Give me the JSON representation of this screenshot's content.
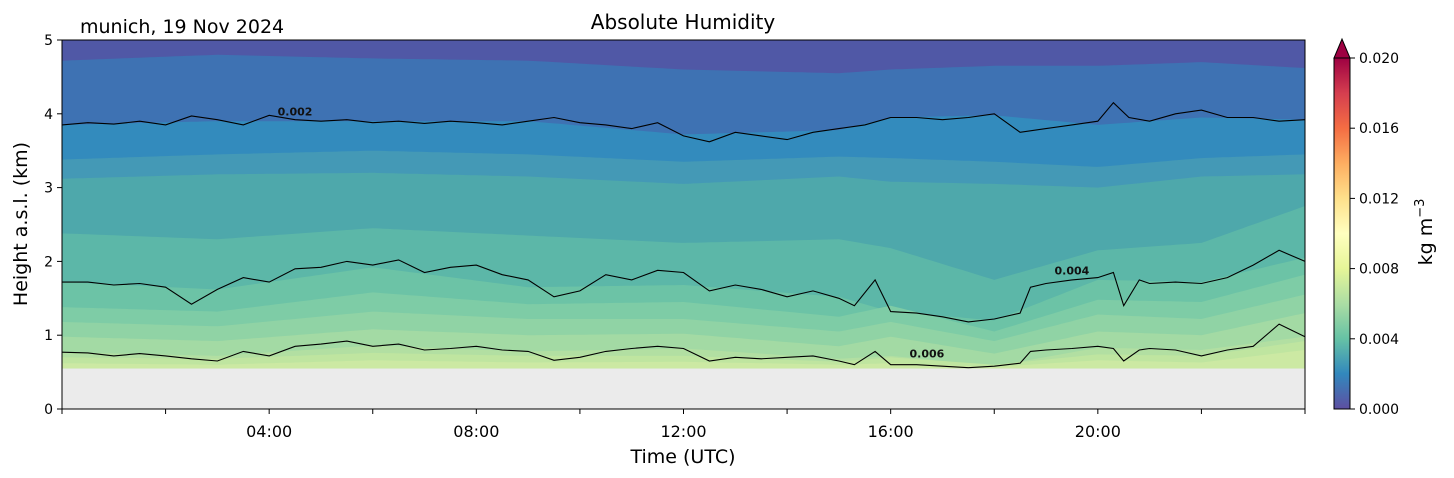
{
  "chart_data": {
    "type": "heatmap",
    "title": "Absolute Humidity",
    "station_label": "munich, 19 Nov 2024",
    "xlabel": "Time (UTC)",
    "ylabel": "Height a.s.l. (km)",
    "xlim_hours": [
      0,
      24
    ],
    "ylim": [
      0,
      5
    ],
    "xticks": [
      {
        "hour": 4,
        "label": "04:00"
      },
      {
        "hour": 8,
        "label": "08:00"
      },
      {
        "hour": 12,
        "label": "12:00"
      },
      {
        "hour": 16,
        "label": "16:00"
      },
      {
        "hour": 20,
        "label": "20:00"
      }
    ],
    "yticks": [
      0,
      1,
      2,
      3,
      4,
      5
    ],
    "data_bottom_km": 0.55,
    "data_top_km": 5,
    "missing_color": "#ebebeb",
    "colorbar": {
      "label": "kg m",
      "label_exponent": "−3",
      "min": 0.0,
      "max": 0.02,
      "extend": "max",
      "ticks": [
        "0.000",
        "0.004",
        "0.008",
        "0.012",
        "0.016",
        "0.020"
      ],
      "tick_values": [
        0.0,
        0.004,
        0.008,
        0.012,
        0.016,
        0.02
      ],
      "colormap": "Spectral_r",
      "colormap_stops": [
        "#5e4fa2",
        "#3288bd",
        "#66c2a5",
        "#abdda4",
        "#e6f598",
        "#ffffbf",
        "#fee08b",
        "#fdae61",
        "#f46d43",
        "#d53e4f",
        "#9e0142"
      ]
    },
    "contour_lines": [
      {
        "level_label": "0.002",
        "label_pos": {
          "hour": 4.5,
          "km": 3.98
        },
        "x_hours": [
          0,
          0.5,
          1,
          1.5,
          2,
          2.5,
          3,
          3.5,
          4,
          4.5,
          5,
          5.5,
          6,
          6.5,
          7,
          7.5,
          8,
          8.5,
          9,
          9.5,
          10,
          10.5,
          11,
          11.5,
          12,
          12.5,
          13,
          13.5,
          14,
          14.5,
          15,
          15.5,
          16,
          16.5,
          17,
          17.5,
          18,
          18.5,
          19,
          19.5,
          20,
          20.3,
          20.6,
          21,
          21.5,
          22,
          22.5,
          23,
          23.5,
          24
        ],
        "heights_km": [
          3.85,
          3.88,
          3.86,
          3.9,
          3.85,
          3.97,
          3.92,
          3.85,
          3.98,
          3.92,
          3.9,
          3.92,
          3.88,
          3.9,
          3.87,
          3.9,
          3.88,
          3.85,
          3.9,
          3.95,
          3.88,
          3.85,
          3.8,
          3.88,
          3.7,
          3.62,
          3.75,
          3.7,
          3.65,
          3.75,
          3.8,
          3.85,
          3.95,
          3.95,
          3.92,
          3.95,
          4.0,
          3.75,
          3.8,
          3.85,
          3.9,
          4.15,
          3.95,
          3.9,
          4.0,
          4.05,
          3.95,
          3.95,
          3.9,
          3.92
        ]
      },
      {
        "level_label": "0.004",
        "label_pos": {
          "hour": 19.5,
          "km": 1.82
        },
        "x_hours": [
          0,
          0.5,
          1,
          1.5,
          2,
          2.5,
          3,
          3.5,
          4,
          4.5,
          5,
          5.5,
          6,
          6.5,
          7,
          7.5,
          8,
          8.5,
          9,
          9.5,
          10,
          10.5,
          11,
          11.5,
          12,
          12.5,
          13,
          13.5,
          14,
          14.5,
          15,
          15.3,
          15.7,
          16,
          16.5,
          17,
          17.5,
          18,
          18.5,
          18.7,
          19,
          19.5,
          20,
          20.3,
          20.5,
          20.8,
          21,
          21.5,
          22,
          22.5,
          23,
          23.5,
          24
        ],
        "heights_km": [
          1.72,
          1.72,
          1.68,
          1.7,
          1.65,
          1.42,
          1.62,
          1.78,
          1.72,
          1.9,
          1.92,
          2.0,
          1.95,
          2.02,
          1.85,
          1.92,
          1.95,
          1.82,
          1.75,
          1.52,
          1.6,
          1.82,
          1.75,
          1.88,
          1.85,
          1.6,
          1.68,
          1.62,
          1.52,
          1.6,
          1.5,
          1.4,
          1.75,
          1.32,
          1.3,
          1.25,
          1.18,
          1.22,
          1.3,
          1.65,
          1.7,
          1.75,
          1.78,
          1.85,
          1.4,
          1.75,
          1.7,
          1.72,
          1.7,
          1.78,
          1.95,
          2.15,
          2.0
        ]
      },
      {
        "level_label": "0.006",
        "label_pos": {
          "hour": 16.7,
          "km": 0.7
        },
        "x_hours": [
          0,
          0.5,
          1,
          1.5,
          2,
          2.5,
          3,
          3.5,
          4,
          4.5,
          5,
          5.5,
          6,
          6.5,
          7,
          7.5,
          8,
          8.5,
          9,
          9.5,
          10,
          10.5,
          11,
          11.5,
          12,
          12.5,
          13,
          13.5,
          14,
          14.5,
          15,
          15.3,
          15.7,
          16,
          16.5,
          17,
          17.5,
          18,
          18.5,
          18.7,
          19,
          19.5,
          20,
          20.3,
          20.5,
          20.8,
          21,
          21.5,
          22,
          22.5,
          23,
          23.5,
          24
        ],
        "heights_km": [
          0.77,
          0.76,
          0.72,
          0.75,
          0.72,
          0.68,
          0.65,
          0.78,
          0.72,
          0.85,
          0.88,
          0.92,
          0.85,
          0.88,
          0.8,
          0.82,
          0.85,
          0.8,
          0.78,
          0.66,
          0.7,
          0.78,
          0.82,
          0.85,
          0.82,
          0.65,
          0.7,
          0.68,
          0.7,
          0.72,
          0.65,
          0.6,
          0.78,
          0.6,
          0.6,
          0.58,
          0.56,
          0.58,
          0.62,
          0.78,
          0.8,
          0.82,
          0.85,
          0.82,
          0.65,
          0.8,
          0.82,
          0.8,
          0.72,
          0.8,
          0.85,
          1.15,
          0.98
        ]
      }
    ],
    "filled_band_upper_bounds": [
      {
        "value": 0.0075,
        "color": "#cce9a3",
        "x_hours": [
          0,
          3,
          6,
          9,
          12,
          15,
          16,
          18,
          20,
          22,
          24
        ],
        "heights_km": [
          0.62,
          0.6,
          0.66,
          0.63,
          0.64,
          0.6,
          0.62,
          0.57,
          0.66,
          0.63,
          0.8
        ]
      },
      {
        "value": 0.007,
        "color": "#bfe5a0",
        "x_hours": [
          0,
          3,
          6,
          9,
          12,
          15,
          16,
          18,
          20,
          22,
          24
        ],
        "heights_km": [
          0.7,
          0.68,
          0.76,
          0.72,
          0.72,
          0.64,
          0.7,
          0.6,
          0.74,
          0.72,
          0.92
        ]
      },
      {
        "value": 0.0065,
        "color": "#b2dfa2",
        "x_hours": [
          0,
          3,
          6,
          9,
          12,
          15,
          16,
          18,
          20,
          22,
          24
        ],
        "heights_km": [
          0.77,
          0.72,
          0.86,
          0.78,
          0.82,
          0.68,
          0.72,
          0.58,
          0.83,
          0.8,
          0.98
        ]
      },
      {
        "value": 0.006,
        "color": "#a3daa4",
        "x_hours": [
          0,
          3,
          6,
          9,
          12,
          15,
          16,
          18,
          20,
          22,
          24
        ],
        "heights_km": [
          0.98,
          0.92,
          1.08,
          1.0,
          1.02,
          0.85,
          0.98,
          0.75,
          1.05,
          1.0,
          1.3
        ]
      },
      {
        "value": 0.0055,
        "color": "#90d3a5",
        "x_hours": [
          0,
          3,
          6,
          9,
          12,
          15,
          16,
          18,
          20,
          22,
          24
        ],
        "heights_km": [
          1.18,
          1.12,
          1.32,
          1.22,
          1.22,
          1.05,
          1.18,
          0.92,
          1.28,
          1.22,
          1.55
        ]
      },
      {
        "value": 0.005,
        "color": "#7ecca6",
        "x_hours": [
          0,
          3,
          6,
          9,
          12,
          15,
          16,
          18,
          20,
          22,
          24
        ],
        "heights_km": [
          1.38,
          1.32,
          1.58,
          1.42,
          1.45,
          1.25,
          1.4,
          1.05,
          1.48,
          1.45,
          1.82
        ]
      },
      {
        "value": 0.0045,
        "color": "#6cc3a6",
        "x_hours": [
          0,
          3,
          6,
          9,
          12,
          15,
          16,
          18,
          20,
          22,
          24
        ],
        "heights_km": [
          1.72,
          1.62,
          1.92,
          1.65,
          1.68,
          1.52,
          1.32,
          1.2,
          1.75,
          1.72,
          2.05
        ]
      },
      {
        "value": 0.004,
        "color": "#5cb7a8",
        "x_hours": [
          0,
          3,
          6,
          9,
          12,
          15,
          16,
          18,
          20,
          22,
          24
        ],
        "heights_km": [
          2.38,
          2.3,
          2.45,
          2.35,
          2.25,
          2.3,
          2.18,
          1.75,
          2.15,
          2.25,
          2.75
        ]
      },
      {
        "value": 0.0035,
        "color": "#4ea8ab",
        "x_hours": [
          0,
          3,
          6,
          9,
          12,
          15,
          16,
          18,
          20,
          22,
          24
        ],
        "heights_km": [
          3.12,
          3.18,
          3.2,
          3.15,
          3.05,
          3.15,
          3.08,
          3.05,
          3.0,
          3.15,
          3.18
        ]
      },
      {
        "value": 0.003,
        "color": "#4499b6",
        "x_hours": [
          0,
          3,
          6,
          9,
          12,
          15,
          16,
          18,
          20,
          22,
          24
        ],
        "heights_km": [
          3.38,
          3.45,
          3.5,
          3.45,
          3.35,
          3.42,
          3.4,
          3.35,
          3.28,
          3.4,
          3.45
        ]
      },
      {
        "value": 0.0025,
        "color": "#338bbd",
        "x_hours": [
          0,
          3,
          6,
          9,
          12,
          15,
          16,
          18,
          20,
          22,
          24
        ],
        "heights_km": [
          3.85,
          3.9,
          3.9,
          3.9,
          3.72,
          3.78,
          3.95,
          3.98,
          3.85,
          3.95,
          3.92
        ]
      },
      {
        "value": 0.002,
        "color": "#3e72b3",
        "x_hours": [
          0,
          3,
          6,
          9,
          12,
          15,
          16,
          18,
          20,
          22,
          24
        ],
        "heights_km": [
          4.72,
          4.8,
          4.75,
          4.72,
          4.6,
          4.55,
          4.6,
          4.65,
          4.65,
          4.7,
          4.62
        ]
      },
      {
        "value": 0.0015,
        "color": "#5058a6",
        "x_hours": [
          0,
          24
        ],
        "heights_km": [
          5,
          5
        ]
      }
    ]
  }
}
